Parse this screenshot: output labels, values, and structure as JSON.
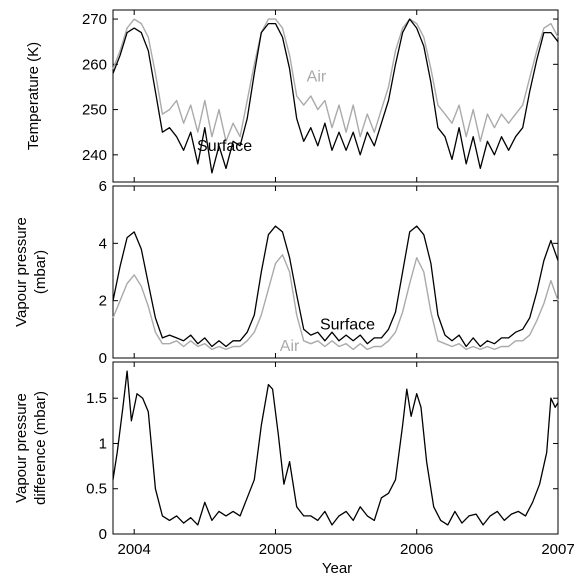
{
  "chart_data": [
    {
      "type": "line",
      "ylabel": "Temperature (K)",
      "ylim": [
        234,
        272
      ],
      "yticks": [
        240,
        250,
        260,
        270
      ],
      "xlim": [
        2003.85,
        2007.0
      ],
      "xticks": [
        2004,
        2005,
        2006,
        2007
      ],
      "xtick_labels": [
        "2004",
        "2005",
        "2006",
        "2007"
      ],
      "annotations": [
        {
          "text": "Air",
          "x": 2005.29,
          "y": 256.2,
          "color": "#aaaaaa"
        },
        {
          "text": "Surface",
          "x": 2004.64,
          "y": 240.9,
          "color": "#000000"
        }
      ],
      "series": [
        {
          "name": "Air",
          "color": "#aaaaaa",
          "x": [
            2003.85,
            2003.9,
            2003.95,
            2004.0,
            2004.05,
            2004.1,
            2004.15,
            2004.2,
            2004.25,
            2004.3,
            2004.35,
            2004.4,
            2004.45,
            2004.5,
            2004.55,
            2004.6,
            2004.65,
            2004.7,
            2004.75,
            2004.8,
            2004.85,
            2004.9,
            2004.95,
            2005.0,
            2005.05,
            2005.1,
            2005.15,
            2005.2,
            2005.25,
            2005.3,
            2005.35,
            2005.4,
            2005.45,
            2005.5,
            2005.55,
            2005.6,
            2005.65,
            2005.7,
            2005.75,
            2005.8,
            2005.85,
            2005.9,
            2005.95,
            2006.0,
            2006.05,
            2006.1,
            2006.15,
            2006.2,
            2006.25,
            2006.3,
            2006.35,
            2006.4,
            2006.45,
            2006.5,
            2006.55,
            2006.6,
            2006.65,
            2006.7,
            2006.75,
            2006.8,
            2006.85,
            2006.9,
            2006.95,
            2007.0
          ],
          "values": [
            259,
            263,
            268,
            270,
            269,
            266,
            258,
            249,
            250,
            252,
            247,
            251,
            245,
            252,
            244,
            250,
            243,
            247,
            244,
            252,
            260,
            267,
            270,
            270,
            268,
            262,
            253,
            251,
            253,
            250,
            252,
            246,
            251,
            245,
            251,
            244,
            249,
            245,
            250,
            255,
            263,
            268,
            270,
            269,
            266,
            259,
            251,
            249,
            247,
            251,
            244,
            250,
            243,
            249,
            246,
            249,
            247,
            249,
            251,
            257,
            263,
            268,
            269,
            266
          ]
        },
        {
          "name": "Surface",
          "color": "#000000",
          "x": [
            2003.85,
            2003.9,
            2003.95,
            2004.0,
            2004.05,
            2004.1,
            2004.15,
            2004.2,
            2004.25,
            2004.3,
            2004.35,
            2004.4,
            2004.45,
            2004.5,
            2004.55,
            2004.6,
            2004.65,
            2004.7,
            2004.75,
            2004.8,
            2004.85,
            2004.9,
            2004.95,
            2005.0,
            2005.05,
            2005.1,
            2005.15,
            2005.2,
            2005.25,
            2005.3,
            2005.35,
            2005.4,
            2005.45,
            2005.5,
            2005.55,
            2005.6,
            2005.65,
            2005.7,
            2005.75,
            2005.8,
            2005.85,
            2005.9,
            2005.95,
            2006.0,
            2006.05,
            2006.1,
            2006.15,
            2006.2,
            2006.25,
            2006.3,
            2006.35,
            2006.4,
            2006.45,
            2006.5,
            2006.55,
            2006.6,
            2006.65,
            2006.7,
            2006.75,
            2006.8,
            2006.85,
            2006.9,
            2006.95,
            2007.0
          ],
          "values": [
            258,
            262,
            267,
            268,
            267,
            263,
            254,
            245,
            246,
            244,
            241,
            245,
            238,
            246,
            236,
            242,
            237,
            243,
            242,
            248,
            258,
            267,
            269,
            269,
            266,
            259,
            248,
            243,
            246,
            242,
            247,
            241,
            245,
            241,
            245,
            240,
            245,
            242,
            247,
            252,
            260,
            267,
            270,
            268,
            264,
            256,
            246,
            244,
            239,
            246,
            238,
            244,
            237,
            243,
            240,
            244,
            241,
            244,
            246,
            254,
            261,
            267,
            267,
            265
          ]
        }
      ]
    },
    {
      "type": "line",
      "ylabel": "Vapour pressure (mbar)",
      "ylabel_lines": [
        "Vapour pressure",
        "(mbar)"
      ],
      "ylim": [
        0,
        6
      ],
      "yticks": [
        0,
        2,
        4,
        6
      ],
      "xlim": [
        2003.85,
        2007.0
      ],
      "xticks": [
        2004,
        2005,
        2006,
        2007
      ],
      "xtick_labels": [
        "2004",
        "2005",
        "2006",
        "2007"
      ],
      "annotations": [
        {
          "text": "Air",
          "x": 2005.1,
          "y": 0.25,
          "color": "#aaaaaa"
        },
        {
          "text": "Surface",
          "x": 2005.51,
          "y": 1.0,
          "color": "#000000"
        }
      ],
      "series": [
        {
          "name": "Air",
          "color": "#aaaaaa",
          "x": [
            2003.85,
            2003.9,
            2003.95,
            2004.0,
            2004.05,
            2004.1,
            2004.15,
            2004.2,
            2004.25,
            2004.3,
            2004.35,
            2004.4,
            2004.45,
            2004.5,
            2004.55,
            2004.6,
            2004.65,
            2004.7,
            2004.75,
            2004.8,
            2004.85,
            2004.9,
            2004.95,
            2005.0,
            2005.05,
            2005.1,
            2005.15,
            2005.2,
            2005.25,
            2005.3,
            2005.35,
            2005.4,
            2005.45,
            2005.5,
            2005.55,
            2005.6,
            2005.65,
            2005.7,
            2005.75,
            2005.8,
            2005.85,
            2005.9,
            2005.95,
            2006.0,
            2006.05,
            2006.1,
            2006.15,
            2006.2,
            2006.25,
            2006.3,
            2006.35,
            2006.4,
            2006.45,
            2006.5,
            2006.55,
            2006.6,
            2006.65,
            2006.7,
            2006.75,
            2006.8,
            2006.85,
            2006.9,
            2006.95,
            2007.0
          ],
          "values": [
            1.4,
            2.0,
            2.6,
            2.9,
            2.5,
            1.8,
            0.9,
            0.5,
            0.5,
            0.6,
            0.4,
            0.6,
            0.4,
            0.5,
            0.3,
            0.4,
            0.3,
            0.4,
            0.4,
            0.6,
            0.9,
            1.5,
            2.4,
            3.3,
            3.6,
            3.0,
            1.5,
            0.6,
            0.5,
            0.6,
            0.4,
            0.6,
            0.4,
            0.5,
            0.3,
            0.5,
            0.3,
            0.4,
            0.4,
            0.6,
            0.9,
            1.6,
            2.6,
            3.5,
            3.0,
            1.6,
            0.6,
            0.5,
            0.4,
            0.5,
            0.3,
            0.4,
            0.3,
            0.4,
            0.3,
            0.4,
            0.4,
            0.6,
            0.6,
            0.8,
            1.3,
            1.9,
            2.7,
            2.0
          ]
        },
        {
          "name": "Surface",
          "color": "#000000",
          "x": [
            2003.85,
            2003.9,
            2003.95,
            2004.0,
            2004.05,
            2004.1,
            2004.15,
            2004.2,
            2004.25,
            2004.3,
            2004.35,
            2004.4,
            2004.45,
            2004.5,
            2004.55,
            2004.6,
            2004.65,
            2004.7,
            2004.75,
            2004.8,
            2004.85,
            2004.9,
            2004.95,
            2005.0,
            2005.05,
            2005.1,
            2005.15,
            2005.2,
            2005.25,
            2005.3,
            2005.35,
            2005.4,
            2005.45,
            2005.5,
            2005.55,
            2005.6,
            2005.65,
            2005.7,
            2005.75,
            2005.8,
            2005.85,
            2005.9,
            2005.95,
            2006.0,
            2006.05,
            2006.1,
            2006.15,
            2006.2,
            2006.25,
            2006.3,
            2006.35,
            2006.4,
            2006.45,
            2006.5,
            2006.55,
            2006.6,
            2006.65,
            2006.7,
            2006.75,
            2006.8,
            2006.85,
            2006.9,
            2006.95,
            2007.0
          ],
          "values": [
            2.0,
            3.2,
            4.2,
            4.4,
            3.8,
            2.6,
            1.4,
            0.7,
            0.8,
            0.7,
            0.6,
            0.8,
            0.5,
            0.7,
            0.4,
            0.6,
            0.4,
            0.6,
            0.6,
            0.9,
            1.5,
            3.0,
            4.3,
            4.6,
            4.4,
            3.5,
            2.2,
            1.0,
            0.8,
            0.9,
            0.6,
            0.9,
            0.6,
            0.8,
            0.6,
            0.8,
            0.5,
            0.7,
            0.7,
            1.0,
            1.6,
            3.0,
            4.4,
            4.6,
            4.3,
            3.3,
            1.5,
            0.8,
            0.6,
            0.8,
            0.4,
            0.7,
            0.4,
            0.6,
            0.5,
            0.7,
            0.7,
            0.9,
            1.0,
            1.4,
            2.3,
            3.4,
            4.1,
            3.4
          ]
        }
      ]
    },
    {
      "type": "line",
      "xlabel": "Year",
      "ylabel": "Vapour pressure difference (mbar)",
      "ylabel_lines": [
        "Vapour pressure",
        "difference (mbar)"
      ],
      "ylim": [
        0,
        1.9
      ],
      "yticks": [
        0,
        0.5,
        1,
        1.5
      ],
      "ytick_labels": [
        "0",
        "0.5",
        "1",
        "1.5"
      ],
      "xlim": [
        2003.85,
        2007.0
      ],
      "xticks": [
        2004,
        2005,
        2006,
        2007
      ],
      "xtick_labels": [
        "2004",
        "2005",
        "2006",
        "2007"
      ],
      "series": [
        {
          "color": "#000000",
          "x": [
            2003.85,
            2003.88,
            2003.92,
            2003.95,
            2003.98,
            2004.02,
            2004.06,
            2004.1,
            2004.15,
            2004.2,
            2004.25,
            2004.3,
            2004.35,
            2004.4,
            2004.45,
            2004.5,
            2004.55,
            2004.6,
            2004.65,
            2004.7,
            2004.75,
            2004.8,
            2004.85,
            2004.9,
            2004.95,
            2004.98,
            2005.02,
            2005.06,
            2005.1,
            2005.15,
            2005.2,
            2005.25,
            2005.3,
            2005.35,
            2005.4,
            2005.45,
            2005.5,
            2005.55,
            2005.6,
            2005.65,
            2005.7,
            2005.75,
            2005.8,
            2005.85,
            2005.9,
            2005.93,
            2005.96,
            2006.0,
            2006.03,
            2006.07,
            2006.12,
            2006.17,
            2006.22,
            2006.27,
            2006.32,
            2006.37,
            2006.42,
            2006.47,
            2006.52,
            2006.57,
            2006.62,
            2006.67,
            2006.72,
            2006.77,
            2006.82,
            2006.87,
            2006.92,
            2006.95,
            2006.98,
            2007.0
          ],
          "values": [
            0.6,
            0.9,
            1.4,
            1.8,
            1.25,
            1.55,
            1.5,
            1.35,
            0.5,
            0.2,
            0.15,
            0.2,
            0.12,
            0.18,
            0.1,
            0.35,
            0.15,
            0.25,
            0.2,
            0.25,
            0.2,
            0.4,
            0.6,
            1.2,
            1.65,
            1.6,
            1.1,
            0.55,
            0.8,
            0.3,
            0.2,
            0.2,
            0.15,
            0.25,
            0.1,
            0.2,
            0.25,
            0.15,
            0.3,
            0.2,
            0.15,
            0.4,
            0.45,
            0.6,
            1.2,
            1.6,
            1.3,
            1.55,
            1.4,
            0.8,
            0.3,
            0.15,
            0.1,
            0.25,
            0.12,
            0.2,
            0.22,
            0.1,
            0.2,
            0.25,
            0.15,
            0.22,
            0.25,
            0.2,
            0.35,
            0.55,
            0.9,
            1.5,
            1.4,
            1.45
          ]
        }
      ]
    }
  ]
}
